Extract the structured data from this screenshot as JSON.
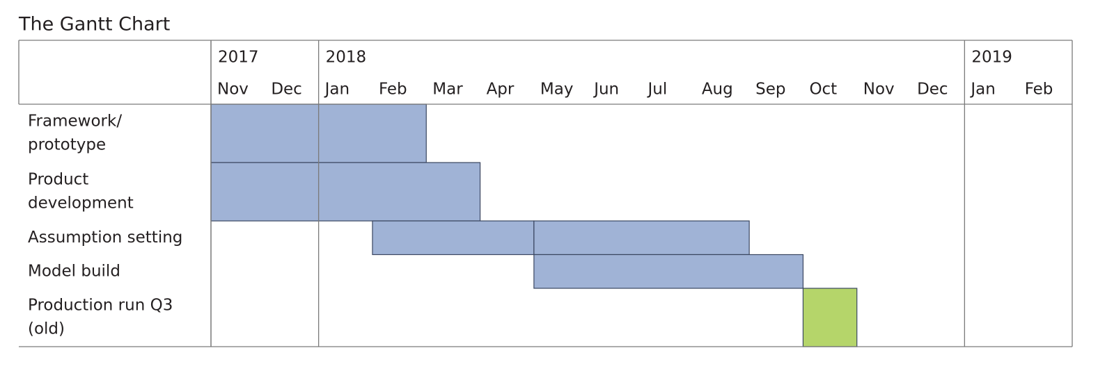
{
  "chart_data": {
    "type": "gantt",
    "title": "The Gantt Chart",
    "xlim": [
      0,
      16
    ],
    "years": [
      {
        "label": "2017",
        "start": 0
      },
      {
        "label": "2018",
        "start": 2
      },
      {
        "label": "2019",
        "start": 14
      }
    ],
    "months": [
      "Nov",
      "Dec",
      "Jan",
      "Feb",
      "Mar",
      "Apr",
      "May",
      "Jun",
      "Jul",
      "Aug",
      "Sep",
      "Oct",
      "Nov",
      "Dec",
      "Jan",
      "Feb"
    ],
    "tasks": [
      {
        "name": [
          "Framework/",
          "prototype"
        ],
        "color": "#a0b3d6",
        "bars": [
          {
            "start": 0,
            "end": 4
          }
        ]
      },
      {
        "name": [
          "Product",
          "development"
        ],
        "color": "#a0b3d6",
        "bars": [
          {
            "start": 0,
            "end": 5
          }
        ]
      },
      {
        "name": [
          "Assumption setting"
        ],
        "color": "#a0b3d6",
        "bars": [
          {
            "start": 3,
            "end": 6
          },
          {
            "start": 6,
            "end": 10
          }
        ]
      },
      {
        "name": [
          "Model build"
        ],
        "color": "#a0b3d6",
        "bars": [
          {
            "start": 6,
            "end": 11
          }
        ]
      },
      {
        "name": [
          "Production run Q3",
          "(old)"
        ],
        "color": "#b5d56a",
        "bars": [
          {
            "start": 11,
            "end": 12
          }
        ]
      }
    ]
  }
}
